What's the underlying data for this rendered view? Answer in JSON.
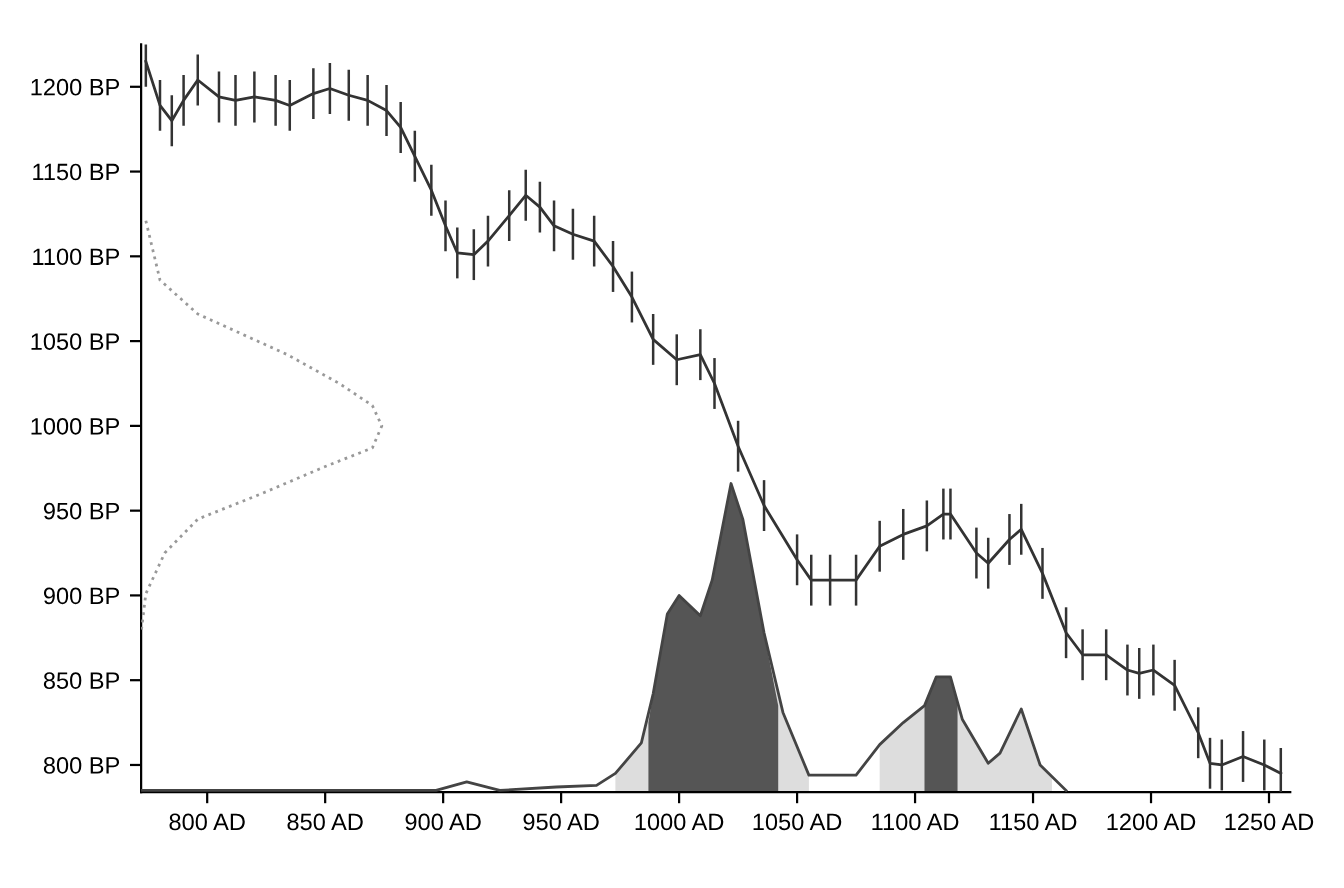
{
  "chart_data": {
    "type": "line",
    "xlim": [
      772,
      1259
    ],
    "ylim": [
      784,
      1225
    ],
    "xticks": [
      {
        "value": 800,
        "label": "800 AD"
      },
      {
        "value": 850,
        "label": "850 AD"
      },
      {
        "value": 900,
        "label": "900 AD"
      },
      {
        "value": 950,
        "label": "950 AD"
      },
      {
        "value": 1000,
        "label": "1000 AD"
      },
      {
        "value": 1050,
        "label": "1050 AD"
      },
      {
        "value": 1100,
        "label": "1100 AD"
      },
      {
        "value": 1150,
        "label": "1150 AD"
      },
      {
        "value": 1200,
        "label": "1200 AD"
      },
      {
        "value": 1250,
        "label": "1250 AD"
      }
    ],
    "yticks": [
      {
        "value": 800,
        "label": "800 BP"
      },
      {
        "value": 850,
        "label": "850 BP"
      },
      {
        "value": 900,
        "label": "900 BP"
      },
      {
        "value": 950,
        "label": "950 BP"
      },
      {
        "value": 1000,
        "label": "1000 BP"
      },
      {
        "value": 1050,
        "label": "1050 BP"
      },
      {
        "value": 1100,
        "label": "1100 BP"
      },
      {
        "value": 1150,
        "label": "1150 BP"
      },
      {
        "value": 1200,
        "label": "1200 BP"
      }
    ],
    "grid": false,
    "legend": false,
    "series": [
      {
        "color": "#333333",
        "line_style": "solid",
        "x": [
          774,
          780,
          785,
          790,
          796,
          805,
          812,
          820,
          829,
          835,
          845,
          852,
          860,
          868,
          876,
          882,
          888,
          895,
          901,
          906,
          913,
          919,
          928,
          935,
          941,
          947,
          955,
          964,
          972,
          980,
          989,
          999,
          1009,
          1015,
          1025,
          1036,
          1050,
          1056,
          1064,
          1075,
          1085,
          1095,
          1105,
          1112,
          1115,
          1126,
          1131,
          1140,
          1145,
          1154,
          1164,
          1171,
          1181,
          1190,
          1195,
          1201,
          1210,
          1220,
          1225,
          1230,
          1239,
          1248,
          1255
        ],
        "values": [
          1215,
          1189,
          1180,
          1192,
          1204,
          1194,
          1192,
          1194,
          1192,
          1189,
          1196,
          1199,
          1195,
          1192,
          1186,
          1176,
          1159,
          1139,
          1118,
          1102,
          1101,
          1109,
          1124,
          1136,
          1129,
          1118,
          1113,
          1109,
          1094,
          1076,
          1051,
          1039,
          1042,
          1025,
          988,
          953,
          921,
          909,
          909,
          909,
          929,
          936,
          941,
          948,
          948,
          925,
          919,
          933,
          939,
          913,
          878,
          865,
          865,
          856,
          854,
          856,
          847,
          819,
          801,
          800,
          805,
          800,
          795
        ],
        "errors": [
          15,
          15,
          15,
          15,
          15,
          15,
          15,
          15,
          15,
          15,
          15,
          15,
          15,
          15,
          15,
          15,
          15,
          15,
          15,
          15,
          15,
          15,
          15,
          15,
          15,
          15,
          15,
          15,
          15,
          15,
          15,
          15,
          15,
          15,
          15,
          15,
          15,
          15,
          15,
          15,
          15,
          15,
          15,
          15,
          15,
          15,
          15,
          15,
          15,
          15,
          15,
          15,
          15,
          15,
          15,
          15,
          15,
          15,
          15,
          15,
          15,
          15,
          15
        ]
      },
      {
        "color": "#999999",
        "line_style": "dotted",
        "x": [
          774,
          780,
          796,
          815,
          834,
          856,
          870,
          874,
          870,
          850,
          823,
          796,
          782,
          774,
          772
        ],
        "values": [
          1121,
          1086,
          1066,
          1054,
          1042,
          1025,
          1012,
          1000,
          987,
          976,
          960,
          945,
          925,
          901,
          878
        ]
      },
      {
        "type": "area",
        "color": "#dddddd",
        "x": [
          973,
          984,
          989,
          995,
          1000,
          1009,
          1014,
          1022,
          1027,
          1036,
          1044,
          1055,
          1075,
          1085,
          1095,
          1104,
          1109,
          1115,
          1120,
          1131,
          1136,
          1145,
          1153,
          1158
        ],
        "values": [
          795,
          813,
          842,
          889,
          900,
          888,
          909,
          966,
          945,
          878,
          831,
          794,
          null,
          812,
          825,
          835,
          852,
          852,
          827,
          801,
          807,
          833,
          800,
          792
        ]
      },
      {
        "type": "area",
        "color": "#555555",
        "x": [
          987,
          989,
          995,
          1000,
          1009,
          1014,
          1022,
          1027,
          1036,
          1042,
          null,
          1104,
          1109,
          1115,
          1118
        ],
        "values": [
          825,
          842,
          889,
          900,
          888,
          909,
          966,
          945,
          878,
          835,
          null,
          835,
          852,
          852,
          838
        ]
      },
      {
        "color": "#444444",
        "line_style": "solid",
        "x": [
          772,
          897,
          910,
          924,
          948,
          965,
          973,
          984,
          989,
          995,
          1000,
          1009,
          1014,
          1022,
          1027,
          1036,
          1044,
          1055,
          1075,
          1085,
          1095,
          1104,
          1109,
          1115,
          1120,
          1131,
          1136,
          1145,
          1153,
          1164
        ],
        "values": [
          785,
          785,
          790,
          785,
          787,
          788,
          795,
          813,
          842,
          889,
          900,
          888,
          909,
          966,
          945,
          878,
          831,
          794,
          794,
          812,
          825,
          835,
          852,
          852,
          827,
          801,
          807,
          833,
          800,
          785
        ]
      }
    ]
  }
}
